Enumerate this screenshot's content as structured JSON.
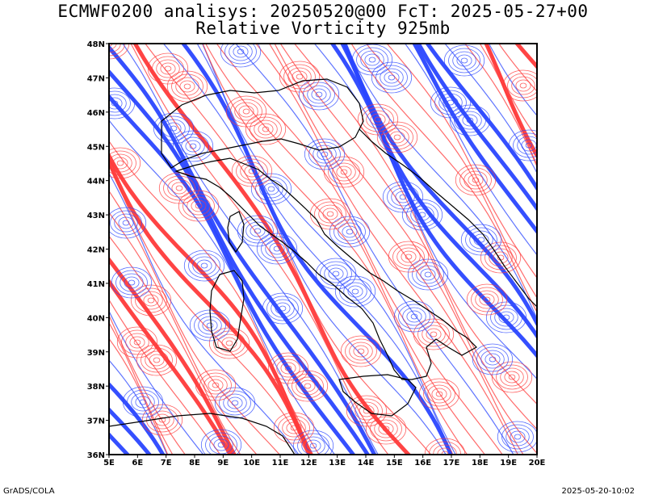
{
  "header": {
    "title_line1": "ECMWF0200 analisys: 20250520@00 FcT: 2025-05-27+00",
    "title_line2": "Relative Vorticity 925mb"
  },
  "map": {
    "lat_labels": [
      "48N",
      "47N",
      "46N",
      "45N",
      "44N",
      "43N",
      "42N",
      "41N",
      "40N",
      "39N",
      "38N",
      "37N",
      "36N"
    ],
    "lon_labels": [
      "5E",
      "6E",
      "7E",
      "8E",
      "9E",
      "10E",
      "11E",
      "12E",
      "13E",
      "14E",
      "15E",
      "16E",
      "17E",
      "18E",
      "19E",
      "20E"
    ],
    "lat_range": [
      36,
      48
    ],
    "lon_range": [
      5,
      20
    ],
    "positive_color": "#ff3a3a",
    "negative_color": "#2a46ff",
    "coastline_color": "#000000",
    "field": "relative vorticity contours"
  },
  "footer": {
    "left": "GrADS/COLA",
    "right": "2025-05-20-10:02"
  }
}
